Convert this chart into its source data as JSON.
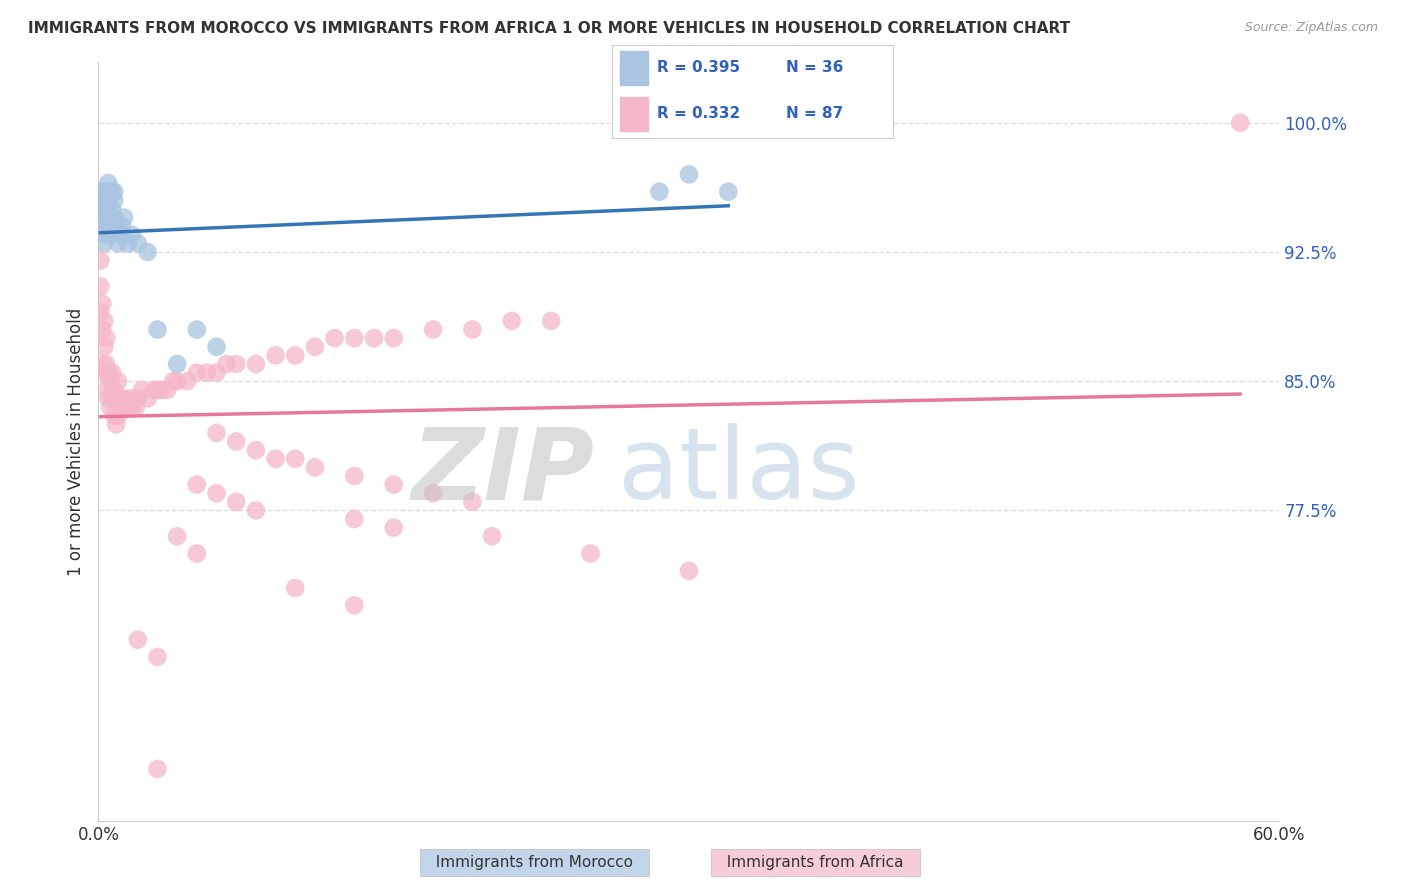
{
  "title": "IMMIGRANTS FROM MOROCCO VS IMMIGRANTS FROM AFRICA 1 OR MORE VEHICLES IN HOUSEHOLD CORRELATION CHART",
  "source": "Source: ZipAtlas.com",
  "ylabel": "1 or more Vehicles in Household",
  "right_ytick_labels": [
    "100.0%",
    "92.5%",
    "85.0%",
    "77.5%"
  ],
  "right_ytick_values": [
    1.0,
    0.925,
    0.85,
    0.775
  ],
  "xlim": [
    0.0,
    0.6
  ],
  "ylim": [
    0.595,
    1.035
  ],
  "morocco_R": 0.395,
  "morocco_N": 36,
  "africa_R": 0.332,
  "africa_N": 87,
  "morocco_color": "#a8c4e0",
  "africa_color": "#f4b8c8",
  "morocco_line_color": "#3575b5",
  "africa_line_color": "#e8789a",
  "legend_box_color_morocco": "#a8c4e0",
  "legend_box_color_africa": "#f4b8c8",
  "legend_text_color": "#3060c0",
  "watermark_zip_color": "#c8c8c8",
  "watermark_atlas_color": "#b8cce4",
  "background_color": "#ffffff",
  "grid_color": "#dddddd",
  "morocco_x": [
    0.001,
    0.001,
    0.002,
    0.002,
    0.003,
    0.003,
    0.003,
    0.004,
    0.004,
    0.005,
    0.005,
    0.005,
    0.006,
    0.006,
    0.007,
    0.007,
    0.008,
    0.008,
    0.008,
    0.009,
    0.01,
    0.01,
    0.011,
    0.012,
    0.013,
    0.015,
    0.017,
    0.02,
    0.025,
    0.03,
    0.04,
    0.05,
    0.06,
    0.285,
    0.3,
    0.32
  ],
  "morocco_y": [
    0.96,
    0.95,
    0.955,
    0.94,
    0.945,
    0.935,
    0.93,
    0.96,
    0.95,
    0.965,
    0.955,
    0.94,
    0.935,
    0.945,
    0.96,
    0.95,
    0.945,
    0.955,
    0.96,
    0.94,
    0.94,
    0.93,
    0.935,
    0.94,
    0.945,
    0.93,
    0.935,
    0.93,
    0.925,
    0.88,
    0.86,
    0.88,
    0.87,
    0.96,
    0.97,
    0.96
  ],
  "africa_x": [
    0.001,
    0.001,
    0.001,
    0.002,
    0.002,
    0.002,
    0.003,
    0.003,
    0.003,
    0.004,
    0.004,
    0.004,
    0.005,
    0.005,
    0.006,
    0.006,
    0.007,
    0.007,
    0.008,
    0.008,
    0.009,
    0.009,
    0.01,
    0.01,
    0.011,
    0.012,
    0.013,
    0.014,
    0.015,
    0.016,
    0.017,
    0.018,
    0.019,
    0.02,
    0.022,
    0.025,
    0.028,
    0.03,
    0.032,
    0.035,
    0.038,
    0.04,
    0.045,
    0.05,
    0.055,
    0.06,
    0.065,
    0.07,
    0.08,
    0.09,
    0.1,
    0.11,
    0.12,
    0.13,
    0.14,
    0.15,
    0.17,
    0.19,
    0.21,
    0.23,
    0.06,
    0.07,
    0.08,
    0.09,
    0.1,
    0.11,
    0.13,
    0.15,
    0.17,
    0.19,
    0.05,
    0.06,
    0.07,
    0.08,
    0.13,
    0.15,
    0.2,
    0.25,
    0.3,
    0.04,
    0.05,
    0.1,
    0.13,
    0.02,
    0.03,
    0.03,
    0.58
  ],
  "africa_y": [
    0.92,
    0.905,
    0.89,
    0.895,
    0.88,
    0.86,
    0.885,
    0.87,
    0.855,
    0.875,
    0.86,
    0.845,
    0.855,
    0.84,
    0.85,
    0.835,
    0.855,
    0.84,
    0.845,
    0.83,
    0.84,
    0.825,
    0.85,
    0.83,
    0.84,
    0.84,
    0.835,
    0.835,
    0.84,
    0.835,
    0.835,
    0.84,
    0.835,
    0.84,
    0.845,
    0.84,
    0.845,
    0.845,
    0.845,
    0.845,
    0.85,
    0.85,
    0.85,
    0.855,
    0.855,
    0.855,
    0.86,
    0.86,
    0.86,
    0.865,
    0.865,
    0.87,
    0.875,
    0.875,
    0.875,
    0.875,
    0.88,
    0.88,
    0.885,
    0.885,
    0.82,
    0.815,
    0.81,
    0.805,
    0.805,
    0.8,
    0.795,
    0.79,
    0.785,
    0.78,
    0.79,
    0.785,
    0.78,
    0.775,
    0.77,
    0.765,
    0.76,
    0.75,
    0.74,
    0.76,
    0.75,
    0.73,
    0.72,
    0.7,
    0.69,
    0.625,
    1.0
  ]
}
